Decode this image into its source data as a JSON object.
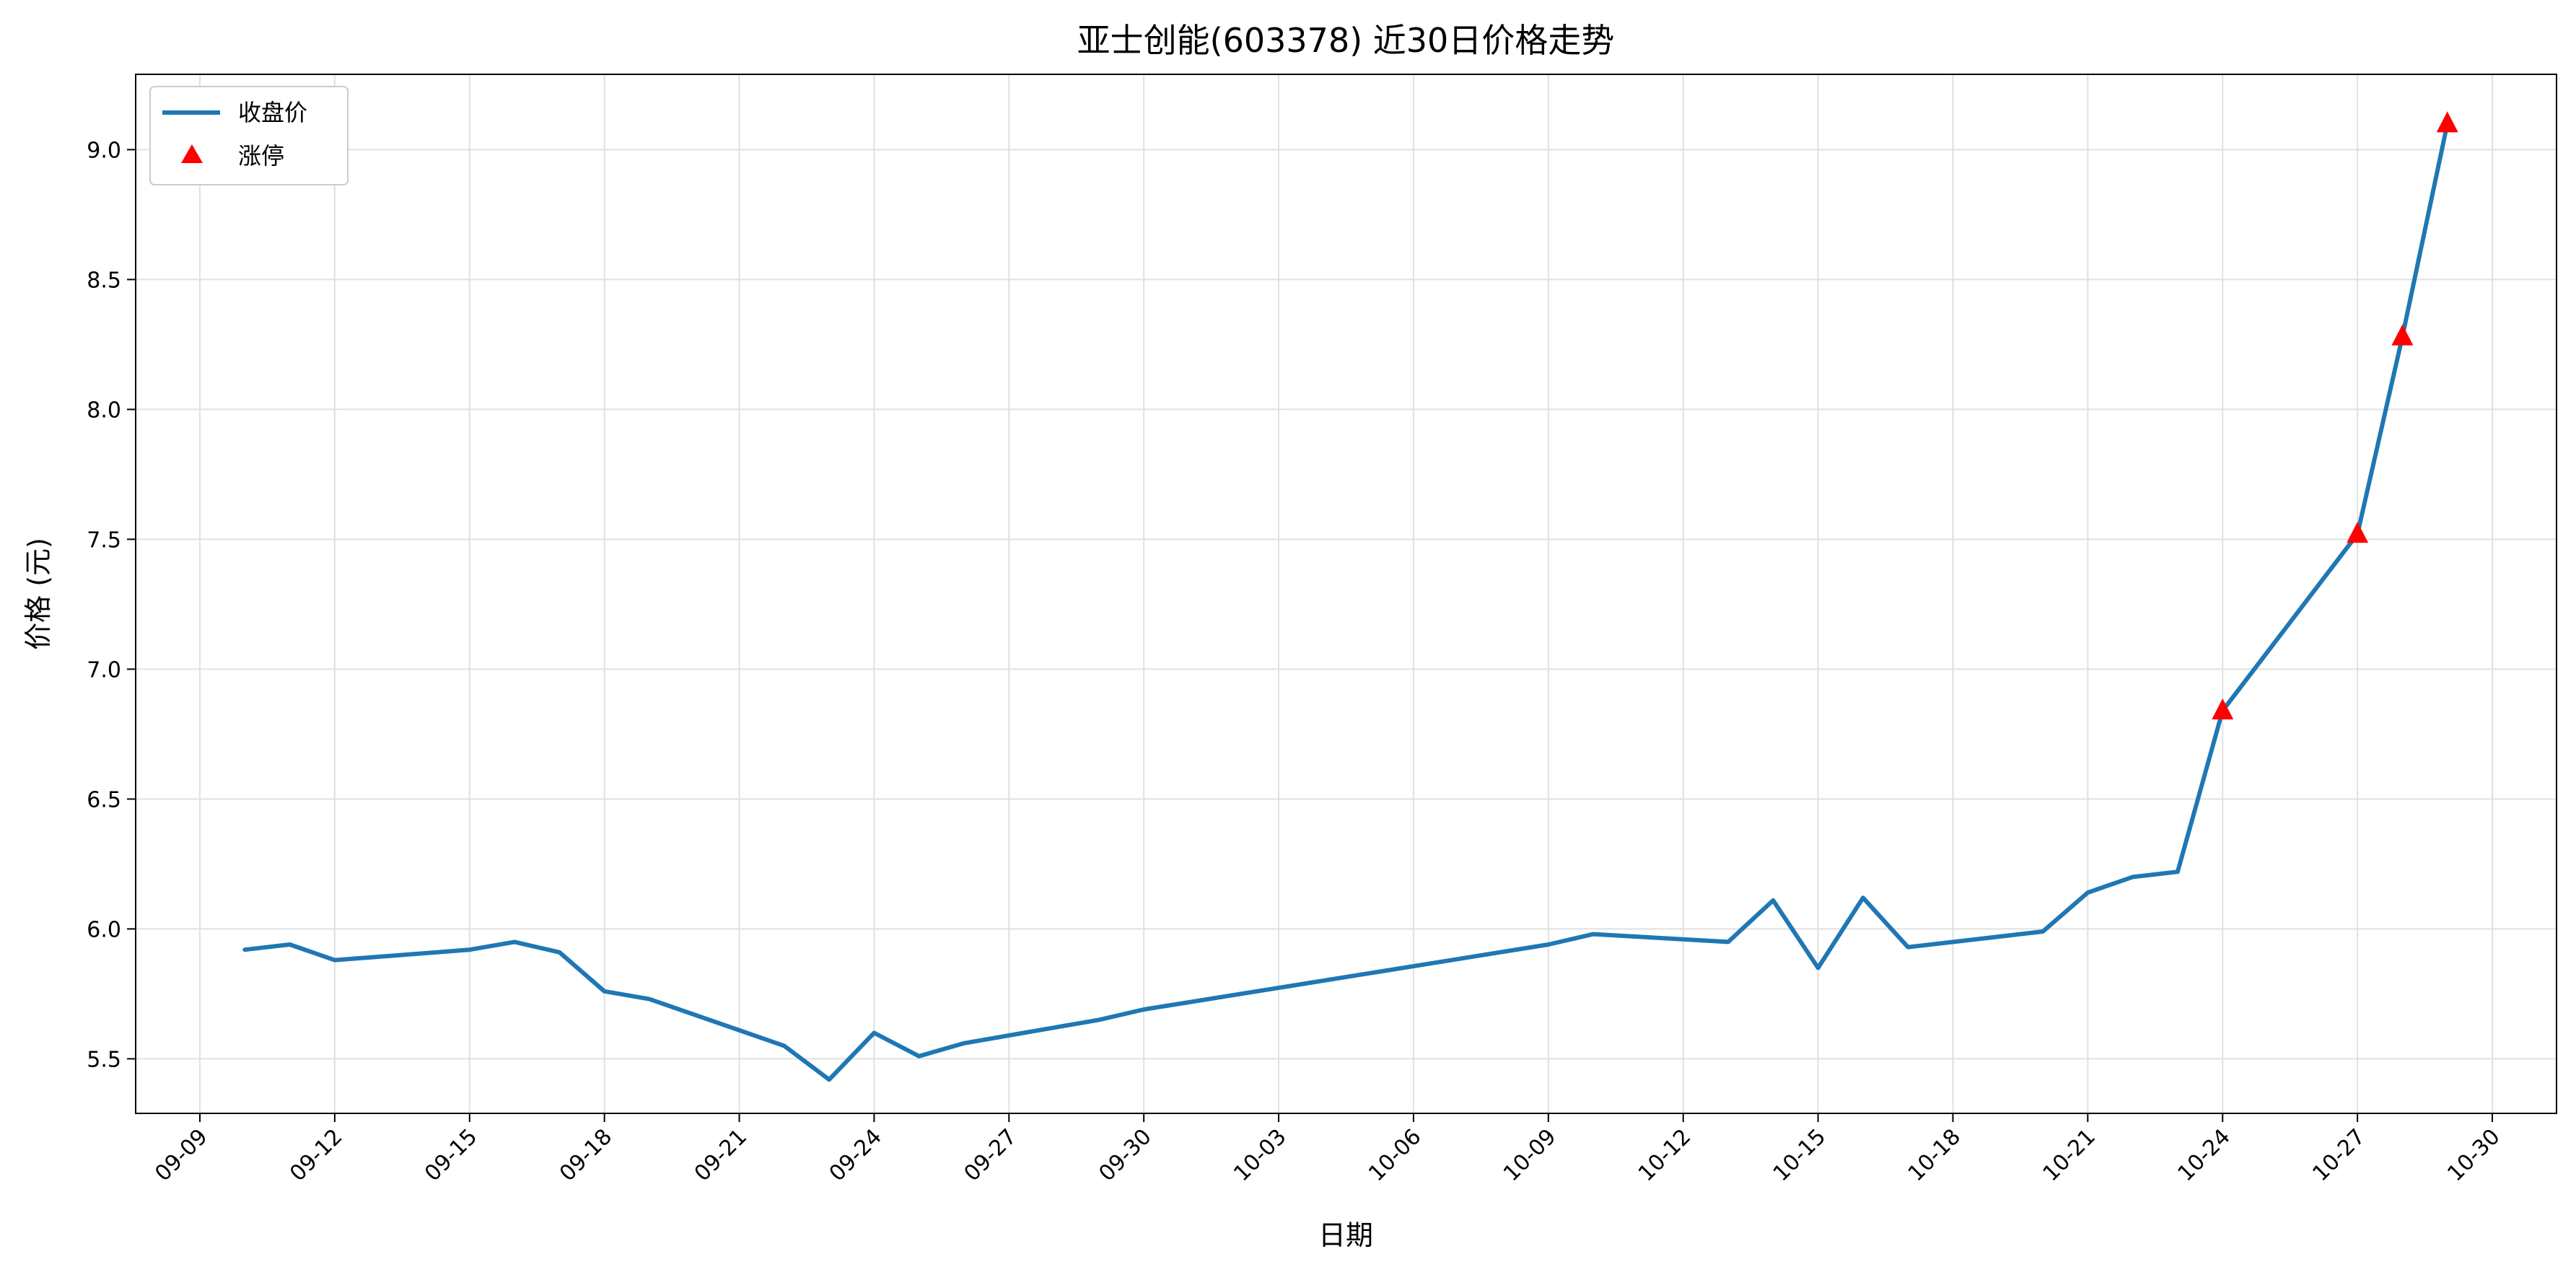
{
  "chart_data": {
    "type": "line",
    "title": "亚士创能(603378) 近30日价格走势",
    "xlabel": "日期",
    "ylabel": "价格 (元)",
    "x_tick_labels": [
      "09-09",
      "09-12",
      "09-15",
      "09-18",
      "09-21",
      "09-24",
      "09-27",
      "09-30",
      "10-03",
      "10-06",
      "10-09",
      "10-12",
      "10-15",
      "10-18",
      "10-21",
      "10-24",
      "10-27",
      "10-30"
    ],
    "y_tick_labels": [
      "5.5",
      "6.0",
      "6.5",
      "7.0",
      "7.5",
      "8.0",
      "8.5",
      "9.0"
    ],
    "ylim": [
      5.29,
      9.29
    ],
    "grid": true,
    "legend_position": "top-left",
    "series": [
      {
        "name": "收盘价",
        "color": "#1f77b4",
        "points": [
          [
            "09-10",
            5.92
          ],
          [
            "09-11",
            5.94
          ],
          [
            "09-12",
            5.88
          ],
          [
            "09-15",
            5.92
          ],
          [
            "09-16",
            5.95
          ],
          [
            "09-17",
            5.91
          ],
          [
            "09-18",
            5.76
          ],
          [
            "09-19",
            5.73
          ],
          [
            "09-22",
            5.55
          ],
          [
            "09-23",
            5.42
          ],
          [
            "09-24",
            5.6
          ],
          [
            "09-25",
            5.51
          ],
          [
            "09-26",
            5.56
          ],
          [
            "09-29",
            5.65
          ],
          [
            "09-30",
            5.69
          ],
          [
            "10-09",
            5.94
          ],
          [
            "10-10",
            5.98
          ],
          [
            "10-13",
            5.95
          ],
          [
            "10-14",
            6.11
          ],
          [
            "10-15",
            5.85
          ],
          [
            "10-16",
            6.12
          ],
          [
            "10-17",
            5.93
          ],
          [
            "10-20",
            5.99
          ],
          [
            "10-21",
            6.14
          ],
          [
            "10-22",
            6.2
          ],
          [
            "10-23",
            6.22
          ],
          [
            "10-24",
            6.84
          ],
          [
            "10-27",
            7.52
          ],
          [
            "10-28",
            8.28
          ],
          [
            "10-29",
            9.1
          ]
        ]
      },
      {
        "name": "涨停",
        "color": "#ff0000",
        "marker": "triangle",
        "points": [
          [
            "10-24",
            6.84
          ],
          [
            "10-27",
            7.52
          ],
          [
            "10-28",
            8.28
          ],
          [
            "10-29",
            9.1
          ]
        ]
      }
    ]
  }
}
